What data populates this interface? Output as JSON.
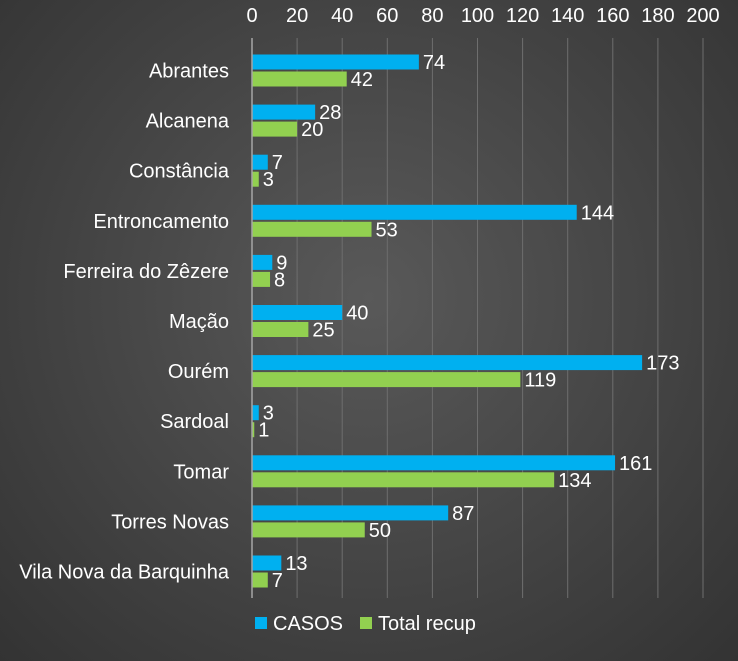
{
  "chart_data": {
    "type": "bar",
    "orientation": "horizontal",
    "categories": [
      "Abrantes",
      "Alcanena",
      "Constância",
      "Entroncamento",
      "Ferreira do Zêzere",
      "Mação",
      "Ourém",
      "Sardoal",
      "Tomar",
      "Torres Novas",
      "Vila Nova da Barquinha"
    ],
    "series": [
      {
        "name": "CASOS",
        "color": "#00b0f0",
        "values": [
          74,
          28,
          7,
          144,
          9,
          40,
          173,
          3,
          161,
          87,
          13
        ]
      },
      {
        "name": "Total recup",
        "color": "#92d050",
        "values": [
          42,
          20,
          3,
          53,
          8,
          25,
          119,
          1,
          134,
          50,
          7
        ]
      }
    ],
    "xlim": [
      0,
      200
    ],
    "xticks": [
      0,
      20,
      40,
      60,
      80,
      100,
      120,
      140,
      160,
      180,
      200
    ],
    "x_axis_position": "top",
    "grid": true,
    "legend_position": "bottom",
    "data_labels": true
  }
}
